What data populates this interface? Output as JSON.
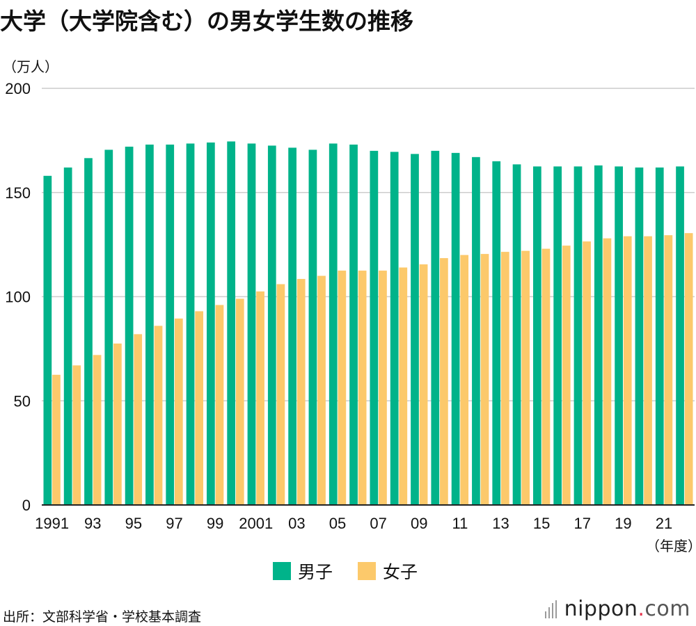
{
  "title": "大学（大学院含む）の男女学生数の推移",
  "unit_label": "（万人）",
  "year_unit_label": "（年度）",
  "legend": [
    {
      "label": "男子",
      "color": "#00b38a"
    },
    {
      "label": "女子",
      "color": "#fcc96b"
    }
  ],
  "source": "出所：文部科学省・学校基本調査",
  "brand": {
    "name": "nippon",
    "dot": ".",
    "tld": "com"
  },
  "colors": {
    "male": "#00b38a",
    "female": "#fcc96b",
    "grid": "#cccccc",
    "axis": "#222222"
  },
  "chart_data": {
    "type": "bar",
    "title": "大学（大学院含む）の男女学生数の推移",
    "xlabel": "（年度）",
    "ylabel": "（万人）",
    "ylim": [
      0,
      200
    ],
    "yticks": [
      0,
      50,
      100,
      150,
      200
    ],
    "categories": [
      "1991",
      "1992",
      "1993",
      "1994",
      "1995",
      "1996",
      "1997",
      "1998",
      "1999",
      "2000",
      "2001",
      "2002",
      "2003",
      "2004",
      "2005",
      "2006",
      "2007",
      "2008",
      "2009",
      "2010",
      "2011",
      "2012",
      "2013",
      "2014",
      "2015",
      "2016",
      "2017",
      "2018",
      "2019",
      "2020",
      "2021",
      "2022"
    ],
    "tick_labels": [
      {
        "index": 0,
        "label": "1991"
      },
      {
        "index": 2,
        "label": "93"
      },
      {
        "index": 4,
        "label": "95"
      },
      {
        "index": 6,
        "label": "97"
      },
      {
        "index": 8,
        "label": "99"
      },
      {
        "index": 10,
        "label": "2001"
      },
      {
        "index": 12,
        "label": "03"
      },
      {
        "index": 14,
        "label": "05"
      },
      {
        "index": 16,
        "label": "07"
      },
      {
        "index": 18,
        "label": "09"
      },
      {
        "index": 20,
        "label": "11"
      },
      {
        "index": 22,
        "label": "13"
      },
      {
        "index": 24,
        "label": "15"
      },
      {
        "index": 26,
        "label": "17"
      },
      {
        "index": 28,
        "label": "19"
      },
      {
        "index": 30,
        "label": "21"
      }
    ],
    "series": [
      {
        "name": "男子",
        "values": [
          158,
          162,
          166.5,
          170.5,
          172,
          173,
          173,
          173.5,
          174,
          174.5,
          173.5,
          172.5,
          171.5,
          170.5,
          173.5,
          173,
          170,
          169.5,
          168.5,
          170,
          169,
          167,
          165,
          163.5,
          162.5,
          162.5,
          162.5,
          163,
          162.5,
          162,
          162,
          162.5
        ]
      },
      {
        "name": "女子",
        "values": [
          62.5,
          67,
          72,
          77.5,
          82,
          86,
          89.5,
          93,
          96,
          99,
          102.5,
          106,
          108.5,
          110,
          112.5,
          112.5,
          112.5,
          114,
          115.5,
          118.5,
          120,
          120.5,
          121.5,
          122,
          123,
          124.5,
          126.5,
          128,
          129,
          129,
          129.5,
          130.5
        ]
      }
    ]
  }
}
